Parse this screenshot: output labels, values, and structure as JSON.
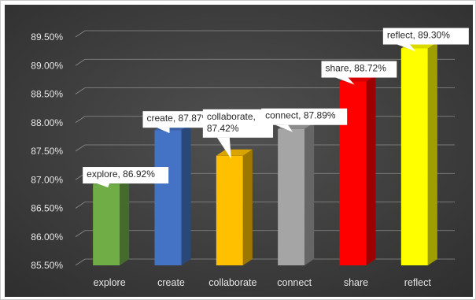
{
  "chart_data": {
    "type": "bar",
    "title": "",
    "xlabel": "",
    "ylabel": "",
    "categories": [
      "explore",
      "create",
      "collaborate",
      "connect",
      "share",
      "reflect"
    ],
    "values": [
      86.92,
      87.87,
      87.42,
      87.89,
      88.72,
      89.3
    ],
    "value_unit": "%",
    "data_labels": [
      "explore, 86.92%",
      "create, 87.87%",
      "collaborate, 87.42%",
      "connect, 87.89%",
      "share, 88.72%",
      "reflect, 89.30%"
    ],
    "ylim": [
      85.5,
      89.5
    ],
    "yticks": [
      85.5,
      86.0,
      86.5,
      87.0,
      87.5,
      88.0,
      88.5,
      89.0,
      89.5
    ],
    "ytick_labels": [
      "85.50%",
      "86.00%",
      "86.50%",
      "87.00%",
      "87.50%",
      "88.00%",
      "88.50%",
      "89.00%",
      "89.50%"
    ],
    "colors": [
      "#70ad47",
      "#4472c4",
      "#ffc000",
      "#a5a5a5",
      "#ff0000",
      "#ffff00"
    ],
    "background": "#404040",
    "grid": true,
    "legend": "none",
    "style": "3d-column"
  }
}
